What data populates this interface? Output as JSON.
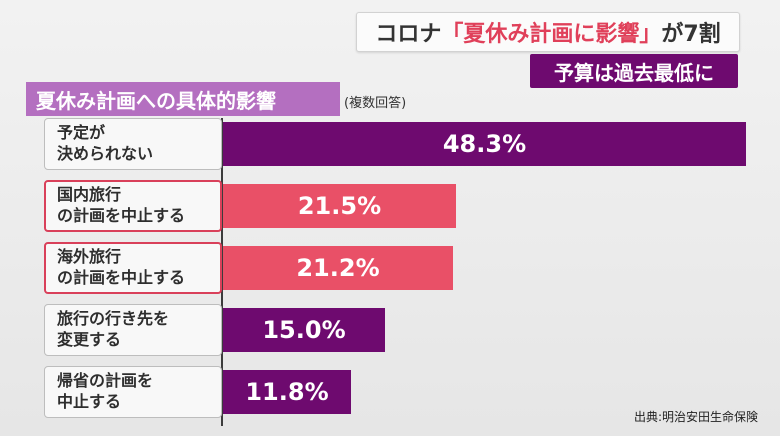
{
  "headline": {
    "prefix": "コロナ",
    "highlight": "「夏休み計画に影響」",
    "suffix": "が7割"
  },
  "subhead": "予算は過去最低に",
  "section_title": "夏休み計画への具体的影響",
  "note": "(複数回答)",
  "source": "出典:明治安田生命保険",
  "colors": {
    "purple": "#6e0a6f",
    "pink": "#e95067",
    "title_bg": "#b46fc0",
    "highlight_border": "#d9405a"
  },
  "chart_data": {
    "type": "bar",
    "orientation": "horizontal",
    "unit": "%",
    "categories": [
      [
        "予定が",
        "決められない"
      ],
      [
        "国内旅行",
        "の計画を中止する"
      ],
      [
        "海外旅行",
        "の計画を中止する"
      ],
      [
        "旅行の行き先を",
        "変更する"
      ],
      [
        "帰省の計画を",
        "中止する"
      ]
    ],
    "values": [
      48.3,
      21.5,
      21.2,
      15.0,
      11.8
    ],
    "value_labels": [
      "48.3%",
      "21.5%",
      "21.2%",
      "15.0%",
      "11.8%"
    ],
    "bar_colors": [
      "#6e0a6f",
      "#e95067",
      "#e95067",
      "#6e0a6f",
      "#6e0a6f"
    ],
    "highlighted": [
      false,
      true,
      true,
      false,
      false
    ]
  }
}
